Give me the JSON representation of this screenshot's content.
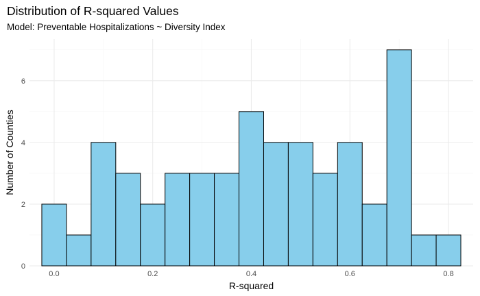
{
  "chart_data": {
    "type": "bar",
    "title": "Distribution of R-squared Values",
    "subtitle": "Model: Preventable Hospitalizations ~ Diversity Index",
    "xlabel": "R-squared",
    "ylabel": "Number of Counties",
    "bin_width": 0.05,
    "bins": [
      {
        "center": 0.0,
        "count": 2
      },
      {
        "center": 0.05,
        "count": 1
      },
      {
        "center": 0.1,
        "count": 4
      },
      {
        "center": 0.15,
        "count": 3
      },
      {
        "center": 0.2,
        "count": 2
      },
      {
        "center": 0.25,
        "count": 3
      },
      {
        "center": 0.3,
        "count": 3
      },
      {
        "center": 0.35,
        "count": 3
      },
      {
        "center": 0.4,
        "count": 5
      },
      {
        "center": 0.45,
        "count": 4
      },
      {
        "center": 0.5,
        "count": 4
      },
      {
        "center": 0.55,
        "count": 3
      },
      {
        "center": 0.6,
        "count": 4
      },
      {
        "center": 0.65,
        "count": 2
      },
      {
        "center": 0.7,
        "count": 7
      },
      {
        "center": 0.75,
        "count": 1
      },
      {
        "center": 0.8,
        "count": 1
      }
    ],
    "xlim": [
      -0.05,
      0.85
    ],
    "ylim": [
      0,
      7.35
    ],
    "xticks": [
      {
        "value": 0.0,
        "label": "0.0"
      },
      {
        "value": 0.2,
        "label": "0.2"
      },
      {
        "value": 0.4,
        "label": "0.4"
      },
      {
        "value": 0.6,
        "label": "0.6"
      },
      {
        "value": 0.8,
        "label": "0.8"
      }
    ],
    "yticks": [
      {
        "value": 0,
        "label": "0"
      },
      {
        "value": 2,
        "label": "2"
      },
      {
        "value": 4,
        "label": "4"
      },
      {
        "value": 6,
        "label": "6"
      }
    ],
    "bar_fill": "#87ceeb",
    "bar_stroke": "#000000",
    "grid": true,
    "grid_major_color": "#ebebeb",
    "grid_minor_color": "#f5f5f5",
    "legend": "none"
  }
}
